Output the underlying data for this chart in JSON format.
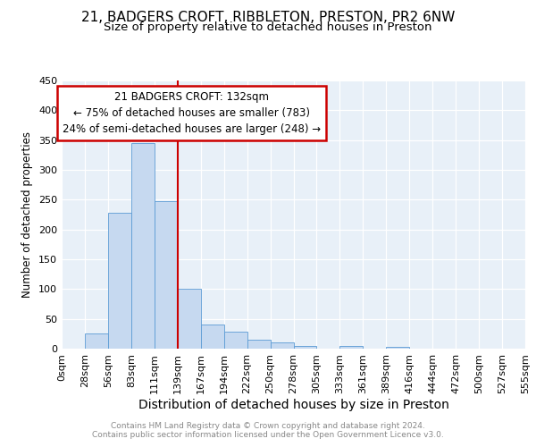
{
  "title1": "21, BADGERS CROFT, RIBBLETON, PRESTON, PR2 6NW",
  "title2": "Size of property relative to detached houses in Preston",
  "xlabel": "Distribution of detached houses by size in Preston",
  "ylabel": "Number of detached properties",
  "footer1": "Contains HM Land Registry data © Crown copyright and database right 2024.",
  "footer2": "Contains public sector information licensed under the Open Government Licence v3.0.",
  "bin_labels": [
    "0sqm",
    "28sqm",
    "56sqm",
    "83sqm",
    "111sqm",
    "139sqm",
    "167sqm",
    "194sqm",
    "222sqm",
    "250sqm",
    "278sqm",
    "305sqm",
    "333sqm",
    "361sqm",
    "389sqm",
    "416sqm",
    "444sqm",
    "472sqm",
    "500sqm",
    "527sqm",
    "555sqm"
  ],
  "bar_heights": [
    0,
    25,
    228,
    345,
    247,
    100,
    40,
    28,
    15,
    11,
    5,
    0,
    4,
    0,
    3,
    0,
    0,
    0,
    0,
    0,
    3
  ],
  "bar_color": "#c6d9f0",
  "bar_edge_color": "#5b9bd5",
  "vline_x_index": 5,
  "vline_color": "#cc0000",
  "annotation_title": "21 BADGERS CROFT: 132sqm",
  "annotation_line1": "← 75% of detached houses are smaller (783)",
  "annotation_line2": "24% of semi-detached houses are larger (248) →",
  "annotation_box_color": "#cc0000",
  "ylim": [
    0,
    450
  ],
  "yticks": [
    0,
    50,
    100,
    150,
    200,
    250,
    300,
    350,
    400,
    450
  ],
  "plot_bg_color": "#e8f0f8",
  "title1_fontsize": 11,
  "title2_fontsize": 9.5,
  "xlabel_fontsize": 10,
  "ylabel_fontsize": 8.5,
  "tick_fontsize": 8,
  "footer_fontsize": 6.5,
  "annot_fontsize": 8.5
}
